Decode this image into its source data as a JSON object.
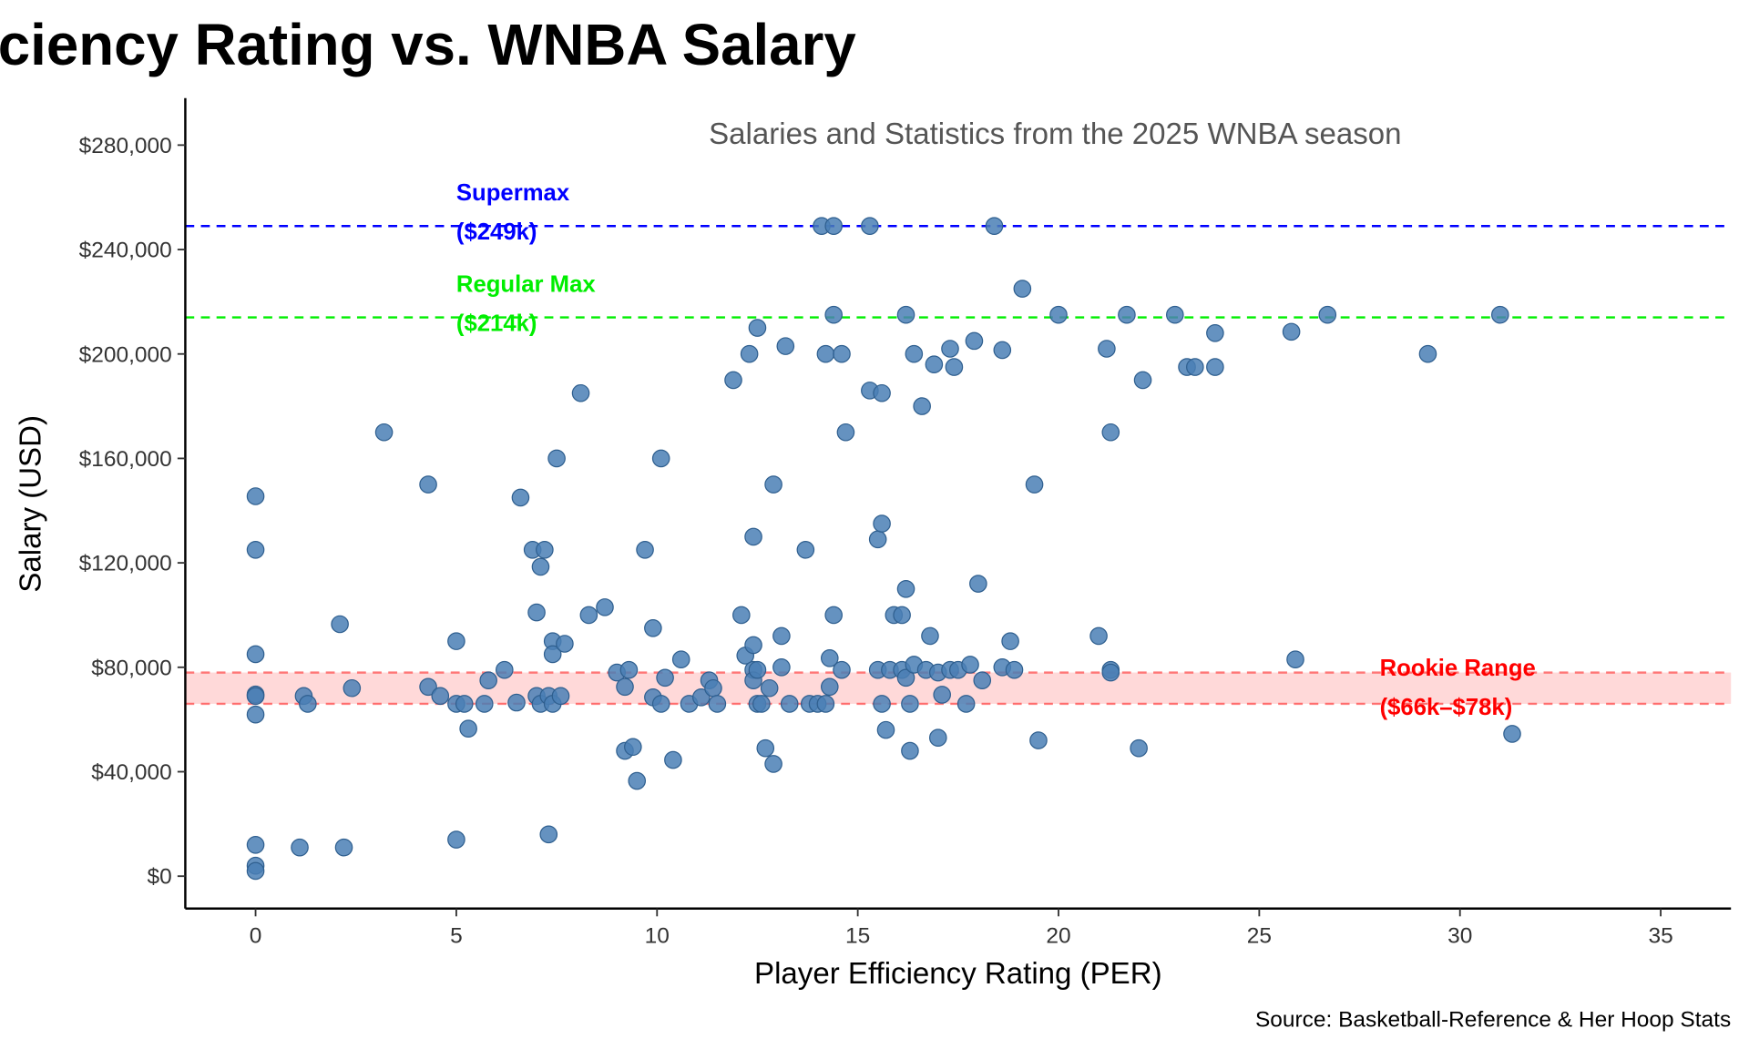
{
  "chart_data": {
    "type": "scatter",
    "title": "ciency Rating vs. WNBA Salary",
    "subtitle": "Salaries and Statistics from the 2025 WNBA season",
    "x_label": "Player Efficiency Rating (PER)",
    "y_label": "Salary (USD)",
    "caption": "Source: Basketball-Reference & Her Hoop Stats",
    "color": "#4a7fb5",
    "xlim": [
      -1.75,
      36.75
    ],
    "ylim": [
      -12400,
      298000
    ],
    "xticks": [
      0,
      5,
      10,
      15,
      20,
      25,
      30,
      35
    ],
    "yticks": [
      {
        "value": 0,
        "label": "$0"
      },
      {
        "value": 40000,
        "label": "$40,000"
      },
      {
        "value": 80000,
        "label": "$80,000"
      },
      {
        "value": 120000,
        "label": "$120,000"
      },
      {
        "value": 160000,
        "label": "$160,000"
      },
      {
        "value": 200000,
        "label": "$200,000"
      },
      {
        "value": 240000,
        "label": "$240,000"
      },
      {
        "value": 280000,
        "label": "$280,000"
      }
    ],
    "reference_lines": [
      {
        "label": [
          "Supermax",
          "($249k)"
        ],
        "value": 249000,
        "color": "#0000ff"
      },
      {
        "label": [
          "Regular Max",
          "($214k)"
        ],
        "value": 214000,
        "color": "#00ee00"
      }
    ],
    "bands": [
      {
        "label": [
          "Rookie Range",
          "($66k–$78k)"
        ],
        "range": [
          66000,
          78000
        ],
        "color": "#ff0000"
      }
    ],
    "x": [
      0,
      0,
      0,
      0,
      0,
      0,
      0,
      0,
      0,
      1.1,
      1.2,
      1.3,
      2.1,
      2.2,
      2.4,
      3.2,
      4.3,
      4.3,
      4.6,
      5.0,
      5.0,
      5.0,
      5.2,
      5.3,
      5.7,
      5.8,
      6.2,
      6.5,
      6.6,
      6.9,
      7.0,
      7.0,
      7.1,
      7.1,
      7.2,
      7.3,
      7.3,
      7.4,
      7.4,
      7.4,
      7.5,
      7.6,
      7.7,
      8.1,
      8.3,
      8.7,
      9.0,
      9.2,
      9.2,
      9.3,
      9.4,
      9.5,
      9.7,
      9.9,
      9.9,
      10.1,
      10.2,
      10.1,
      10.4,
      10.6,
      10.8,
      11.1,
      11.3,
      11.4,
      11.5,
      11.9,
      12.1,
      12.2,
      12.3,
      12.4,
      12.4,
      12.4,
      12.4,
      12.5,
      12.5,
      12.5,
      12.6,
      12.7,
      12.8,
      12.9,
      12.9,
      13.1,
      13.1,
      13.2,
      13.3,
      13.7,
      13.8,
      14.0,
      14.1,
      14.2,
      14.2,
      14.3,
      14.3,
      14.4,
      14.4,
      14.4,
      14.6,
      14.6,
      14.7,
      15.3,
      15.3,
      15.5,
      15.5,
      15.6,
      15.6,
      15.6,
      15.7,
      15.8,
      15.9,
      16.1,
      16.1,
      16.2,
      16.2,
      16.2,
      16.3,
      16.3,
      16.4,
      16.4,
      16.6,
      16.7,
      16.8,
      16.9,
      17.0,
      17.0,
      17.1,
      17.3,
      17.3,
      17.4,
      17.5,
      17.7,
      17.8,
      17.9,
      18.0,
      18.1,
      18.4,
      18.6,
      18.6,
      18.8,
      18.9,
      19.1,
      19.4,
      19.5,
      20.0,
      21.0,
      21.2,
      21.3,
      21.3,
      21.3,
      21.7,
      22.0,
      22.1,
      22.9,
      23.2,
      23.4,
      23.9,
      23.9,
      25.8,
      25.9,
      26.7,
      29.2,
      31.0,
      31.3
    ],
    "values": [
      145500,
      125000,
      85000,
      69600,
      69000,
      61900,
      12000,
      4000,
      2000,
      11000,
      69000,
      66000,
      96500,
      11000,
      72000,
      170000,
      150000,
      72500,
      69000,
      90000,
      66000,
      14000,
      66000,
      56500,
      66000,
      75000,
      79000,
      66500,
      145000,
      125000,
      101000,
      69000,
      118500,
      66000,
      125000,
      69000,
      16000,
      90000,
      85000,
      66000,
      160000,
      69000,
      89000,
      185000,
      100000,
      103000,
      78000,
      72500,
      48000,
      79000,
      49500,
      36500,
      125000,
      95000,
      68500,
      160000,
      76000,
      66000,
      44500,
      83000,
      66000,
      68500,
      75000,
      72000,
      66000,
      190000,
      100000,
      84500,
      200000,
      130000,
      88500,
      79000,
      75000,
      210000,
      79000,
      66000,
      66000,
      49000,
      72000,
      150000,
      43000,
      92000,
      80000,
      203000,
      66000,
      125000,
      66000,
      66000,
      249000,
      66000,
      200000,
      83500,
      72500,
      249000,
      215000,
      100000,
      200000,
      79000,
      170000,
      249000,
      186000,
      129000,
      79000,
      135000,
      185000,
      66000,
      56000,
      79000,
      100000,
      79000,
      100000,
      215000,
      110000,
      76000,
      66000,
      48000,
      200000,
      81000,
      180000,
      79000,
      92000,
      196000,
      53000,
      78000,
      69500,
      202000,
      79000,
      195000,
      79000,
      66000,
      81000,
      205000,
      112000,
      75000,
      249000,
      201500,
      80000,
      90000,
      79000,
      225000,
      150000,
      52000,
      215000,
      92000,
      202000,
      170000,
      79000,
      78000,
      215000,
      49000,
      190000,
      215000,
      195000,
      195000,
      208000,
      195000,
      208500,
      83000,
      215000,
      200000,
      215000,
      54500
    ]
  }
}
